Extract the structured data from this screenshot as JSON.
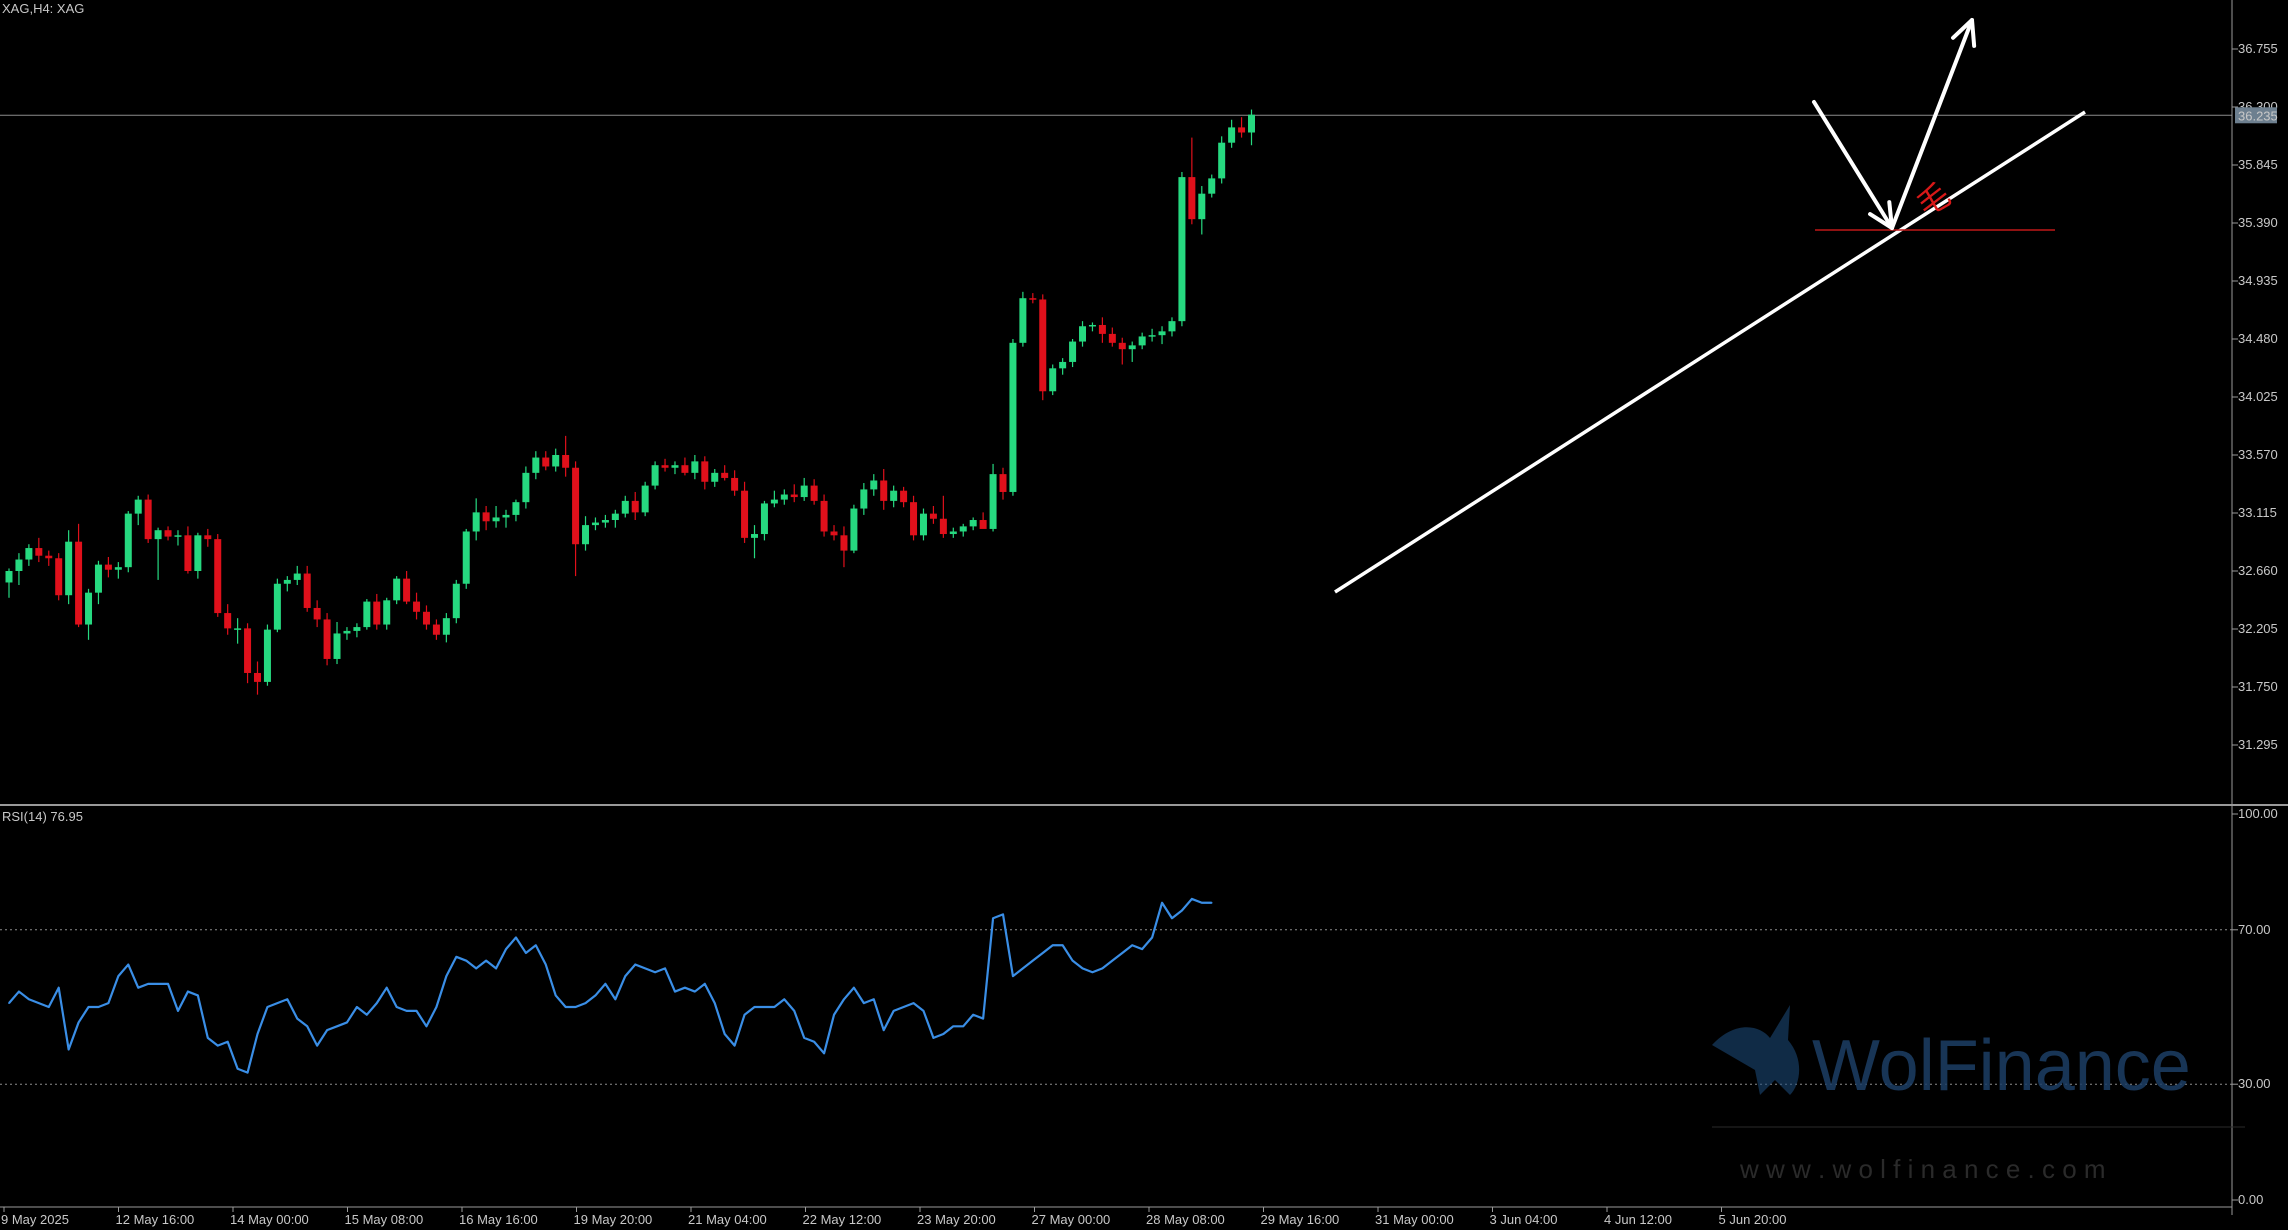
{
  "header": {
    "symbol_label": "XAG,H4:  XAG",
    "rsi_label": "RSI(14) 76.95"
  },
  "colors": {
    "background": "#000000",
    "bull_candle": "#26d980",
    "bear_candle": "#e0101b",
    "rsi_line": "#3a8ee6",
    "trendline": "#ffffff",
    "support_line": "#c01818",
    "axis_text": "#c8c8c8"
  },
  "price_axis": {
    "ticks": [
      "36.755",
      "36.300",
      "35.845",
      "35.390",
      "34.935",
      "34.480",
      "34.025",
      "33.570",
      "33.115",
      "32.660",
      "32.205",
      "31.750",
      "31.295"
    ],
    "current_price": "36.235"
  },
  "rsi_axis": {
    "ticks": [
      "100.00",
      "70.00",
      "30.00",
      "0.00"
    ]
  },
  "time_axis": {
    "ticks": [
      "9 May 2025",
      "12 May 16:00",
      "14 May 00:00",
      "15 May 08:00",
      "16 May 16:00",
      "19 May 20:00",
      "21 May 04:00",
      "22 May 12:00",
      "23 May 20:00",
      "27 May 00:00",
      "28 May 08:00",
      "29 May 16:00",
      "31 May 00:00",
      "3 Jun 04:00",
      "4 Jun 12:00",
      "5 Jun 20:00"
    ]
  },
  "annotation": {
    "glyph": "毛",
    "icons": [
      "arrow-down-icon",
      "arrow-up-icon"
    ]
  },
  "watermark": {
    "brand": "WolFinance",
    "url": "w w w . w o l f i n a n c e . c o m",
    "logo_icon": "wolf-logo-icon"
  },
  "chart_data": [
    {
      "type": "candlestick",
      "title": "",
      "symbol": "XAG",
      "timeframe": "H4",
      "ylim": [
        31.0,
        37.0
      ],
      "grid": false,
      "current_price": 36.235,
      "candles": [
        [
          32.57,
          32.68,
          32.45,
          32.66
        ],
        [
          32.66,
          32.8,
          32.55,
          32.75
        ],
        [
          32.75,
          32.87,
          32.7,
          32.84
        ],
        [
          32.84,
          32.92,
          32.73,
          32.78
        ],
        [
          32.78,
          32.82,
          32.7,
          32.76
        ],
        [
          32.76,
          32.8,
          32.43,
          32.47
        ],
        [
          32.47,
          32.98,
          32.4,
          32.89
        ],
        [
          32.89,
          33.03,
          32.22,
          32.24
        ],
        [
          32.24,
          32.52,
          32.12,
          32.49
        ],
        [
          32.49,
          32.74,
          32.4,
          32.71
        ],
        [
          32.71,
          32.77,
          32.61,
          32.67
        ],
        [
          32.67,
          32.73,
          32.6,
          32.69
        ],
        [
          32.69,
          33.13,
          32.65,
          33.11
        ],
        [
          33.11,
          33.25,
          33.02,
          33.22
        ],
        [
          33.22,
          33.26,
          32.88,
          32.91
        ],
        [
          32.91,
          33.0,
          32.59,
          32.98
        ],
        [
          32.98,
          33.01,
          32.9,
          32.93
        ],
        [
          32.93,
          32.98,
          32.86,
          32.94
        ],
        [
          32.94,
          33.01,
          32.64,
          32.66
        ],
        [
          32.66,
          32.96,
          32.6,
          32.94
        ],
        [
          32.94,
          32.99,
          32.85,
          32.91
        ],
        [
          32.91,
          32.95,
          32.3,
          32.33
        ],
        [
          32.33,
          32.4,
          32.16,
          32.21
        ],
        [
          32.21,
          32.29,
          32.09,
          32.21
        ],
        [
          32.21,
          32.25,
          31.78,
          31.86
        ],
        [
          31.86,
          31.95,
          31.69,
          31.79
        ],
        [
          31.79,
          32.24,
          31.76,
          32.2
        ],
        [
          32.2,
          32.6,
          32.18,
          32.56
        ],
        [
          32.56,
          32.62,
          32.5,
          32.59
        ],
        [
          32.59,
          32.7,
          32.55,
          32.64
        ],
        [
          32.64,
          32.7,
          32.34,
          32.37
        ],
        [
          32.37,
          32.43,
          32.22,
          32.28
        ],
        [
          32.28,
          32.33,
          31.92,
          31.97
        ],
        [
          31.97,
          32.26,
          31.93,
          32.17
        ],
        [
          32.17,
          32.22,
          32.12,
          32.19
        ],
        [
          32.19,
          32.25,
          32.14,
          32.22
        ],
        [
          32.22,
          32.44,
          32.2,
          32.42
        ],
        [
          32.42,
          32.48,
          32.2,
          32.24
        ],
        [
          32.24,
          32.45,
          32.2,
          32.43
        ],
        [
          32.43,
          32.62,
          32.4,
          32.6
        ],
        [
          32.6,
          32.66,
          32.4,
          32.42
        ],
        [
          32.42,
          32.49,
          32.28,
          32.34
        ],
        [
          32.34,
          32.39,
          32.2,
          32.24
        ],
        [
          32.24,
          32.28,
          32.12,
          32.16
        ],
        [
          32.16,
          32.33,
          32.1,
          32.29
        ],
        [
          32.29,
          32.59,
          32.25,
          32.56
        ],
        [
          32.56,
          32.99,
          32.52,
          32.97
        ],
        [
          32.97,
          33.23,
          32.9,
          33.12
        ],
        [
          33.12,
          33.17,
          32.98,
          33.05
        ],
        [
          33.05,
          33.17,
          33.0,
          33.08
        ],
        [
          33.08,
          33.14,
          33.0,
          33.1
        ],
        [
          33.1,
          33.22,
          33.05,
          33.2
        ],
        [
          33.2,
          33.48,
          33.15,
          33.43
        ],
        [
          33.43,
          33.6,
          33.38,
          33.55
        ],
        [
          33.55,
          33.6,
          33.45,
          33.48
        ],
        [
          33.48,
          33.62,
          33.44,
          33.57
        ],
        [
          33.57,
          33.72,
          33.4,
          33.47
        ],
        [
          33.47,
          33.52,
          32.62,
          32.87
        ],
        [
          32.87,
          33.09,
          32.82,
          33.02
        ],
        [
          33.02,
          33.08,
          32.98,
          33.04
        ],
        [
          33.04,
          33.1,
          33.0,
          33.06
        ],
        [
          33.06,
          33.14,
          33.0,
          33.11
        ],
        [
          33.11,
          33.25,
          33.08,
          33.21
        ],
        [
          33.21,
          33.28,
          33.06,
          33.12
        ],
        [
          33.12,
          33.36,
          33.09,
          33.33
        ],
        [
          33.33,
          33.52,
          33.3,
          33.49
        ],
        [
          33.49,
          33.54,
          33.44,
          33.47
        ],
        [
          33.47,
          33.52,
          33.42,
          33.49
        ],
        [
          33.49,
          33.55,
          33.41,
          33.43
        ],
        [
          33.43,
          33.57,
          33.38,
          33.52
        ],
        [
          33.52,
          33.56,
          33.3,
          33.36
        ],
        [
          33.36,
          33.46,
          33.32,
          33.43
        ],
        [
          33.43,
          33.49,
          33.37,
          33.39
        ],
        [
          33.39,
          33.45,
          33.25,
          33.29
        ],
        [
          33.29,
          33.36,
          32.88,
          32.92
        ],
        [
          32.92,
          33.02,
          32.76,
          32.95
        ],
        [
          32.95,
          33.21,
          32.9,
          33.19
        ],
        [
          33.19,
          33.29,
          33.16,
          33.22
        ],
        [
          33.22,
          33.3,
          33.18,
          33.26
        ],
        [
          33.26,
          33.34,
          33.2,
          33.24
        ],
        [
          33.24,
          33.39,
          33.21,
          33.33
        ],
        [
          33.33,
          33.38,
          33.18,
          33.21
        ],
        [
          33.21,
          33.26,
          32.93,
          32.97
        ],
        [
          32.97,
          33.02,
          32.9,
          32.94
        ],
        [
          32.94,
          33.01,
          32.69,
          32.82
        ],
        [
          32.82,
          33.18,
          32.8,
          33.15
        ],
        [
          33.15,
          33.35,
          33.1,
          33.3
        ],
        [
          33.3,
          33.42,
          33.25,
          33.37
        ],
        [
          33.37,
          33.46,
          33.14,
          33.21
        ],
        [
          33.21,
          33.33,
          33.16,
          33.29
        ],
        [
          33.29,
          33.32,
          33.16,
          33.2
        ],
        [
          33.2,
          33.25,
          32.9,
          32.94
        ],
        [
          32.94,
          33.15,
          32.9,
          33.11
        ],
        [
          33.11,
          33.17,
          33.03,
          33.07
        ],
        [
          33.07,
          33.25,
          32.92,
          32.95
        ],
        [
          32.95,
          33.0,
          32.92,
          32.97
        ],
        [
          32.97,
          33.03,
          32.93,
          33.01
        ],
        [
          33.01,
          33.08,
          32.98,
          33.06
        ],
        [
          33.06,
          33.12,
          33.02,
          32.99
        ],
        [
          32.99,
          33.5,
          32.97,
          33.42
        ],
        [
          33.42,
          33.47,
          33.22,
          33.28
        ],
        [
          33.28,
          34.48,
          33.25,
          34.45
        ],
        [
          34.45,
          34.85,
          34.42,
          34.8
        ],
        [
          34.8,
          34.84,
          34.76,
          34.79
        ],
        [
          34.79,
          34.83,
          34.0,
          34.07
        ],
        [
          34.07,
          34.28,
          34.04,
          34.25
        ],
        [
          34.25,
          34.33,
          34.2,
          34.3
        ],
        [
          34.3,
          34.48,
          34.26,
          34.46
        ],
        [
          34.46,
          34.62,
          34.42,
          34.58
        ],
        [
          34.58,
          34.61,
          34.54,
          34.59
        ],
        [
          34.59,
          34.65,
          34.45,
          34.52
        ],
        [
          34.52,
          34.57,
          34.42,
          34.45
        ],
        [
          34.45,
          34.49,
          34.28,
          34.4
        ],
        [
          34.4,
          34.46,
          34.3,
          34.43
        ],
        [
          34.43,
          34.53,
          34.4,
          34.5
        ],
        [
          34.5,
          34.56,
          34.46,
          34.51
        ],
        [
          34.51,
          34.58,
          34.44,
          34.54
        ],
        [
          34.54,
          34.65,
          34.5,
          34.62
        ],
        [
          34.62,
          35.79,
          34.58,
          35.75
        ],
        [
          35.75,
          36.06,
          35.38,
          35.42
        ],
        [
          35.42,
          35.68,
          35.3,
          35.62
        ],
        [
          35.62,
          35.77,
          35.59,
          35.74
        ],
        [
          35.74,
          36.07,
          35.7,
          36.02
        ],
        [
          36.02,
          36.2,
          35.98,
          36.14
        ],
        [
          36.14,
          36.22,
          36.06,
          36.1
        ],
        [
          36.1,
          36.28,
          36.0,
          36.24
        ]
      ],
      "support_level": 35.39,
      "trendline_points": [
        [
          32.54,
          32.57
        ],
        [
          36.24,
          36.24
        ]
      ]
    },
    {
      "type": "line",
      "title": "RSI(14) 76.95",
      "ylim": [
        0,
        100
      ],
      "levels": [
        70,
        30
      ],
      "series": [
        {
          "name": "RSI(14)",
          "values": [
            51,
            54,
            52,
            51,
            50,
            55,
            39,
            46,
            50,
            50,
            51,
            58,
            61,
            55,
            56,
            56,
            56,
            49,
            54,
            53,
            42,
            40,
            41,
            34,
            33,
            43,
            50,
            51,
            52,
            47,
            45,
            40,
            44,
            45,
            46,
            50,
            48,
            51,
            55,
            50,
            49,
            49,
            45,
            50,
            58,
            63,
            62,
            60,
            62,
            60,
            65,
            68,
            64,
            66,
            61,
            53,
            50,
            50,
            51,
            53,
            56,
            52,
            58,
            61,
            60,
            59,
            60,
            54,
            55,
            54,
            56,
            51,
            43,
            40,
            48,
            50,
            50,
            50,
            52,
            49,
            42,
            41,
            38,
            48,
            52,
            55,
            51,
            52,
            44,
            49,
            50,
            51,
            49,
            42,
            43,
            45,
            45,
            48,
            47,
            73,
            74,
            58,
            60,
            62,
            64,
            66,
            66,
            62,
            60,
            59,
            60,
            62,
            64,
            66,
            65,
            68,
            77,
            73,
            75,
            78,
            77,
            77
          ]
        }
      ]
    }
  ]
}
